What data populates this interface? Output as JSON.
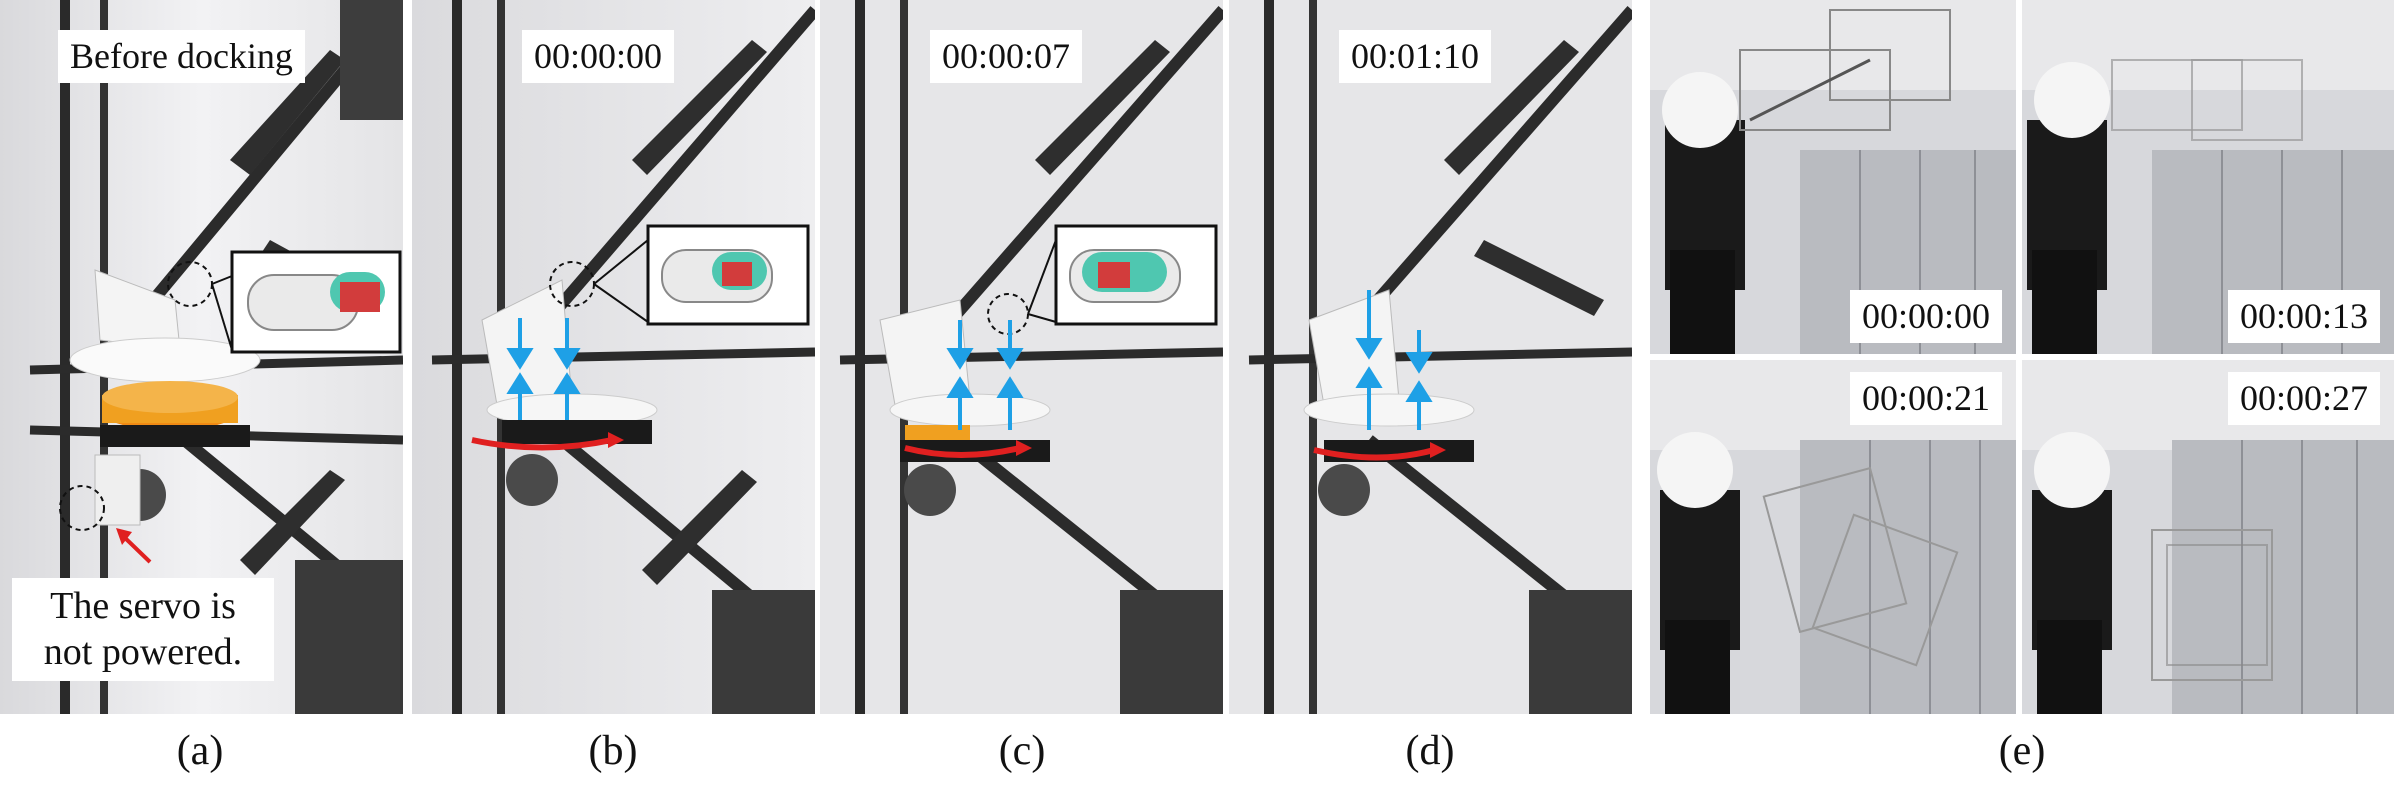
{
  "figure": {
    "panels": [
      {
        "id": "a",
        "caption": "(a)",
        "top_label": "Before docking",
        "bottom_label_line1": "The servo is",
        "bottom_label_line2": "not powered."
      },
      {
        "id": "b",
        "caption": "(b)",
        "timestamp": "00:00:00"
      },
      {
        "id": "c",
        "caption": "(c)",
        "timestamp": "00:00:07"
      },
      {
        "id": "d",
        "caption": "(d)",
        "timestamp": "00:01:10"
      },
      {
        "id": "e",
        "caption": "(e)",
        "frames": [
          {
            "timestamp": "00:00:00"
          },
          {
            "timestamp": "00:00:13"
          },
          {
            "timestamp": "00:00:21"
          },
          {
            "timestamp": "00:00:27"
          }
        ]
      }
    ],
    "colors": {
      "arrow_blue": "#1ea0e6",
      "arrow_red": "#e02020",
      "gear_orange": "#f0a020",
      "teal_part": "#4fc7b0",
      "red_part": "#d23c3c"
    }
  }
}
